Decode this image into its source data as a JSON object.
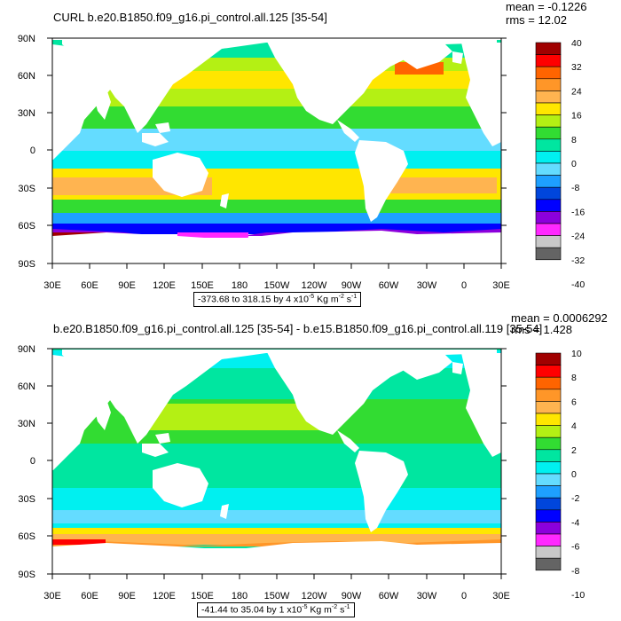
{
  "panels": [
    {
      "title": "CURL b.e20.B1850.f09_g16.pi_control.all.125 [35-54]",
      "mean_text": "mean = -0.1226",
      "rms_text": "rms = 12.02",
      "range_main": "-373.68 to 318.15 by 4 x10",
      "range_exp": "-5",
      "range_units": " Kg m",
      "range_units_exp1": "-2",
      "range_units_tail": " s",
      "range_units_exp2": "-1",
      "colorbar_labels": [
        "40",
        "32",
        "24",
        "16",
        "8",
        "0",
        "-8",
        "-16",
        "-24",
        "-32",
        "-40"
      ]
    },
    {
      "title": "b.e20.B1850.f09_g16.pi_control.all.125 [35-54] - b.e15.B1850.f09_g16.pi_control.all.119 [35-54]",
      "mean_text": "mean = 0.0006292",
      "rms_text": "rms = 1.428",
      "range_main": "-41.44 to 35.04 by 1 x10",
      "range_exp": "-5",
      "range_units": " Kg m",
      "range_units_exp1": "-2",
      "range_units_tail": " s",
      "range_units_exp2": "-1",
      "colorbar_labels": [
        "10",
        "8",
        "6",
        "4",
        "2",
        "0",
        "-2",
        "-4",
        "-6",
        "-8",
        "-10"
      ]
    }
  ],
  "axes": {
    "lat_labels": [
      "90N",
      "60N",
      "30N",
      "0",
      "30S",
      "60S",
      "90S"
    ],
    "lon_labels": [
      "30E",
      "60E",
      "90E",
      "120E",
      "150E",
      "180",
      "150W",
      "120W",
      "90W",
      "60W",
      "30W",
      "0",
      "30E"
    ]
  },
  "colorbar_colors": [
    "#a00000",
    "#ff0000",
    "#ff6400",
    "#ff9628",
    "#ffb450",
    "#ffe600",
    "#b4f014",
    "#32dc32",
    "#00e6a0",
    "#00f0f0",
    "#64dcff",
    "#1ea0ff",
    "#0046dc",
    "#0000ff",
    "#8c00dc",
    "#ff28ff",
    "#c8c8c8",
    "#646464"
  ]
}
